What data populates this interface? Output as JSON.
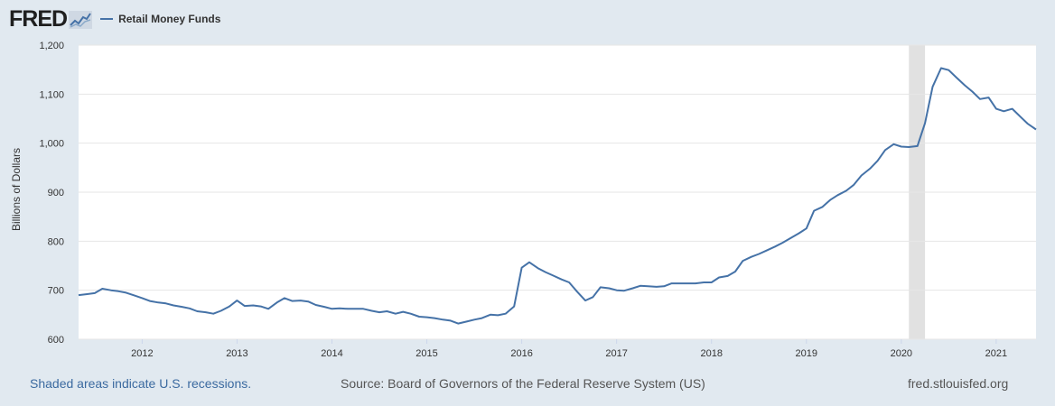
{
  "header": {
    "logo_text": "FRED",
    "legend_label": "Retail Money Funds"
  },
  "footer": {
    "recession_note": "Shaded areas indicate U.S. recessions.",
    "source": "Source: Board of Governors of the Federal Reserve System (US)",
    "site": "fred.stlouisfed.org"
  },
  "colors": {
    "series": "#4572a7",
    "background": "#e1e9f0",
    "plot_background": "#ffffff",
    "recession": "#e1e1e1",
    "footer_link": "#3b6aa0"
  },
  "chart_data": {
    "type": "line",
    "title": "",
    "xlabel": "",
    "ylabel": "Billions of Dollars",
    "xlim": [
      2011.33,
      2021.42
    ],
    "ylim": [
      600,
      1200
    ],
    "yticks": [
      600,
      700,
      800,
      900,
      1000,
      1100,
      1200
    ],
    "ytick_labels": [
      "600",
      "700",
      "800",
      "900",
      "1,000",
      "1,100",
      "1,200"
    ],
    "xticks": [
      2012,
      2013,
      2014,
      2015,
      2016,
      2017,
      2018,
      2019,
      2020,
      2021
    ],
    "xtick_labels": [
      "2012",
      "2013",
      "2014",
      "2015",
      "2016",
      "2017",
      "2018",
      "2019",
      "2020",
      "2021"
    ],
    "grid": true,
    "legend": "top-left",
    "recessions": [
      [
        2020.08,
        2020.25
      ]
    ],
    "series": [
      {
        "name": "Retail Money Funds",
        "x": [
          2011.33,
          2011.42,
          2011.5,
          2011.58,
          2011.67,
          2011.75,
          2011.83,
          2011.92,
          2012.0,
          2012.08,
          2012.17,
          2012.25,
          2012.33,
          2012.42,
          2012.5,
          2012.58,
          2012.67,
          2012.75,
          2012.83,
          2012.92,
          2013.0,
          2013.08,
          2013.17,
          2013.25,
          2013.33,
          2013.42,
          2013.5,
          2013.58,
          2013.67,
          2013.75,
          2013.83,
          2013.92,
          2014.0,
          2014.08,
          2014.17,
          2014.25,
          2014.33,
          2014.42,
          2014.5,
          2014.58,
          2014.67,
          2014.75,
          2014.83,
          2014.92,
          2015.0,
          2015.08,
          2015.17,
          2015.25,
          2015.33,
          2015.42,
          2015.5,
          2015.58,
          2015.67,
          2015.75,
          2015.83,
          2015.92,
          2016.0,
          2016.08,
          2016.17,
          2016.25,
          2016.33,
          2016.42,
          2016.5,
          2016.58,
          2016.67,
          2016.75,
          2016.83,
          2016.92,
          2017.0,
          2017.08,
          2017.17,
          2017.25,
          2017.33,
          2017.42,
          2017.5,
          2017.58,
          2017.67,
          2017.75,
          2017.83,
          2017.92,
          2018.0,
          2018.08,
          2018.17,
          2018.25,
          2018.33,
          2018.42,
          2018.5,
          2018.58,
          2018.67,
          2018.75,
          2018.83,
          2018.92,
          2019.0,
          2019.08,
          2019.17,
          2019.25,
          2019.33,
          2019.42,
          2019.5,
          2019.58,
          2019.67,
          2019.75,
          2019.83,
          2019.92,
          2020.0,
          2020.08,
          2020.17,
          2020.25,
          2020.33,
          2020.42,
          2020.5,
          2020.58,
          2020.67,
          2020.75,
          2020.83,
          2020.92,
          2021.0,
          2021.08,
          2021.17,
          2021.25,
          2021.33,
          2021.42
        ],
        "values": [
          690,
          692,
          694,
          703,
          700,
          698,
          695,
          689,
          684,
          678,
          675,
          673,
          669,
          666,
          663,
          657,
          655,
          652,
          658,
          667,
          679,
          668,
          669,
          667,
          662,
          675,
          684,
          678,
          679,
          677,
          670,
          666,
          662,
          663,
          662,
          662,
          662,
          658,
          655,
          657,
          652,
          656,
          652,
          646,
          645,
          643,
          640,
          638,
          632,
          636,
          640,
          643,
          650,
          649,
          652,
          667,
          746,
          757,
          745,
          737,
          730,
          722,
          716,
          698,
          679,
          686,
          706,
          704,
          700,
          699,
          704,
          709,
          708,
          707,
          708,
          714,
          714,
          714,
          714,
          716,
          716,
          726,
          729,
          738,
          760,
          768,
          774,
          781,
          789,
          797,
          806,
          816,
          826,
          862,
          870,
          884,
          894,
          903,
          915,
          934,
          948,
          964,
          986,
          998,
          993,
          992,
          994,
          1041,
          1115,
          1153,
          1149,
          1134,
          1118,
          1105,
          1090,
          1093,
          1070,
          1065,
          1070,
          1055,
          1040,
          1028
        ]
      }
    ]
  }
}
